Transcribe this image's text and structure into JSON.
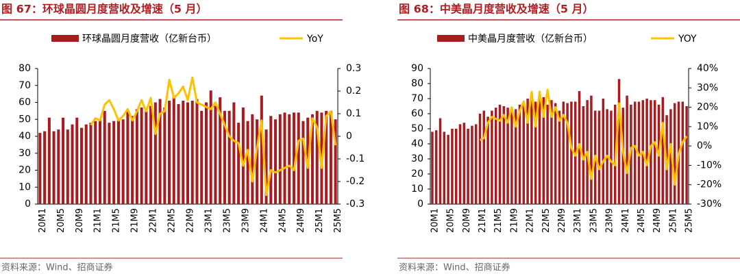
{
  "chart_data": [
    {
      "type": "bar_line",
      "title": "图 67：环球晶圆月度营收及增速（5 月）",
      "source": "资料来源：Wind、招商证券",
      "categories": [
        "20M1",
        null,
        null,
        null,
        "20M5",
        null,
        null,
        null,
        "20M9",
        null,
        null,
        null,
        "21M1",
        null,
        null,
        null,
        "21M5",
        null,
        null,
        null,
        "21M9",
        null,
        null,
        null,
        "22M1",
        null,
        null,
        null,
        "22M5",
        null,
        null,
        null,
        "22M9",
        null,
        null,
        null,
        "23M1",
        null,
        null,
        null,
        "23M5",
        null,
        null,
        null,
        "23M9",
        null,
        null,
        null,
        "24M1",
        null,
        null,
        null,
        "24M5",
        null,
        null,
        null,
        "24M9",
        null,
        null,
        null,
        "25M1",
        null,
        null,
        null,
        "25M5"
      ],
      "series": [
        {
          "name": "环球晶圆月度营收（亿新台币）",
          "type": "bar",
          "color": "#a81c1f",
          "values": [
            42,
            43,
            51,
            43,
            44,
            51,
            44,
            47,
            51,
            45,
            47,
            48,
            49,
            50,
            55,
            48,
            49,
            50,
            50,
            55,
            52,
            56,
            57,
            55,
            58,
            60,
            62,
            57,
            61,
            64,
            59,
            61,
            60,
            61,
            62,
            55,
            60,
            67,
            58,
            63,
            55,
            55,
            60,
            48,
            57,
            49,
            53,
            50,
            64,
            44,
            52,
            50,
            53,
            54,
            53,
            54,
            54,
            49,
            51,
            53,
            55,
            54,
            55,
            55,
            50
          ]
        },
        {
          "name": "YoY",
          "type": "line",
          "axis": "y2",
          "color": "#ffc000",
          "values": [
            null,
            null,
            null,
            null,
            null,
            null,
            null,
            null,
            null,
            null,
            null,
            0.05,
            0.08,
            0.07,
            0.14,
            0.16,
            0.12,
            0.07,
            0.09,
            0.12,
            0.07,
            0.11,
            0.16,
            0.11,
            0.17,
            0.01,
            0.1,
            0.11,
            0.25,
            0.17,
            0.19,
            0.22,
            0.16,
            0.26,
            0.15,
            0.14,
            0.13,
            0.12,
            0.15,
            0.1,
            0.05,
            0.0,
            -0.02,
            -0.03,
            -0.13,
            -0.06,
            -0.2,
            -0.05,
            0.07,
            -0.26,
            -0.15,
            -0.16,
            -0.15,
            -0.14,
            -0.13,
            -0.15,
            -0.02,
            -0.01,
            -0.14,
            0.08,
            0.04,
            -0.14,
            0.09,
            0.11,
            -0.04
          ]
        }
      ],
      "ylim": [
        0,
        80
      ],
      "yticks": [
        0,
        10,
        20,
        30,
        40,
        50,
        60,
        70,
        80
      ],
      "y2lim": [
        -0.3,
        0.3
      ],
      "y2ticks": [
        {
          "value": -0.3,
          "label": "-0.3"
        },
        {
          "value": -0.2,
          "label": "-0.2"
        },
        {
          "value": -0.1,
          "label": "-0.1"
        },
        0,
        {
          "value": 0.1,
          "label": "0.1"
        },
        {
          "value": 0.2,
          "label": "0.2"
        },
        {
          "value": 0.3,
          "label": "0.3"
        }
      ]
    },
    {
      "type": "bar_line",
      "title": "图 68：中美晶月度营收及增速（5 月）",
      "source": "资料来源：Wind、招商证券",
      "categories": [
        "20M1",
        null,
        null,
        null,
        "20M5",
        null,
        null,
        null,
        "20M9",
        null,
        null,
        null,
        "21M1",
        null,
        null,
        null,
        "21M5",
        null,
        null,
        null,
        "21M9",
        null,
        null,
        null,
        "22M1",
        null,
        null,
        null,
        "22M5",
        null,
        null,
        null,
        "22M9",
        null,
        null,
        null,
        "23M1",
        null,
        null,
        null,
        "23M5",
        null,
        null,
        null,
        "23M9",
        null,
        null,
        null,
        "24M1",
        null,
        null,
        null,
        "24M5",
        null,
        null,
        null,
        "24M9",
        null,
        null,
        null,
        "25M1",
        null,
        null,
        null,
        "25M5"
      ],
      "series": [
        {
          "name": "中美晶月度营收（亿新台币）",
          "type": "bar",
          "color": "#a81c1f",
          "values": [
            48,
            49,
            57,
            48,
            46,
            50,
            50,
            53,
            54,
            50,
            52,
            53,
            60,
            62,
            58,
            62,
            64,
            66,
            65,
            64,
            62,
            63,
            66,
            68,
            70,
            73,
            68,
            72,
            71,
            66,
            69,
            67,
            62,
            68,
            67,
            68,
            68,
            75,
            65,
            69,
            72,
            62,
            62,
            70,
            63,
            62,
            66,
            83,
            64,
            72,
            66,
            68,
            68,
            69,
            70,
            69,
            69,
            66,
            71,
            59,
            63,
            67,
            68,
            68,
            65
          ]
        },
        {
          "name": "YOY",
          "type": "line",
          "axis": "y2",
          "color": "#ffc000",
          "values": [
            null,
            null,
            null,
            null,
            null,
            null,
            null,
            null,
            null,
            null,
            null,
            null,
            3,
            4,
            12,
            15,
            14,
            13,
            16,
            12,
            20,
            10,
            18,
            23,
            12,
            28,
            10,
            28,
            15,
            29,
            15,
            20,
            13,
            16,
            12,
            -1,
            -5,
            1,
            -7,
            -3,
            -17,
            -5,
            -12,
            -8,
            -5,
            -8,
            -10,
            22,
            -3,
            -14,
            -1,
            0,
            -5,
            -3,
            -10,
            0,
            2,
            -5,
            12,
            -12,
            1,
            -20,
            -4,
            2,
            5
          ]
        }
      ],
      "ylim": [
        0,
        90
      ],
      "yticks": [
        0,
        10,
        20,
        30,
        40,
        50,
        60,
        70,
        80,
        90
      ],
      "y2lim": [
        -30,
        40
      ],
      "y2ticks": [
        {
          "value": -30,
          "label": "-30%"
        },
        {
          "value": -20,
          "label": "-20%"
        },
        {
          "value": -10,
          "label": "-10%"
        },
        {
          "value": 0,
          "label": "0%"
        },
        {
          "value": 10,
          "label": "10%"
        },
        {
          "value": 20,
          "label": "20%"
        },
        {
          "value": 30,
          "label": "30%"
        },
        {
          "value": 40,
          "label": "40%"
        }
      ]
    }
  ]
}
